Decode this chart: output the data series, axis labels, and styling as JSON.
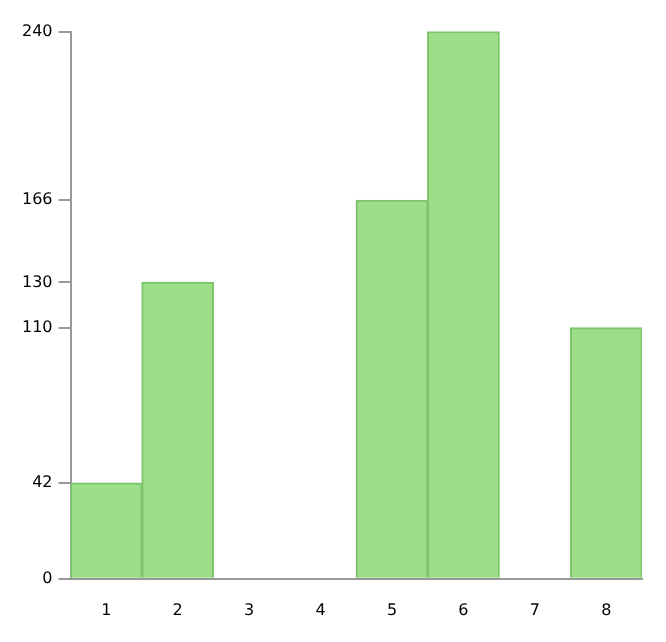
{
  "chart_data": {
    "type": "bar",
    "categories": [
      "1",
      "2",
      "3",
      "4",
      "5",
      "6",
      "7",
      "8"
    ],
    "values": [
      42,
      130,
      0,
      0,
      166,
      240,
      0,
      110
    ],
    "color": "#9ede88",
    "ylim": [
      0,
      240
    ],
    "yticks": [
      0,
      42,
      110,
      130,
      166,
      240
    ],
    "grid": false
  }
}
